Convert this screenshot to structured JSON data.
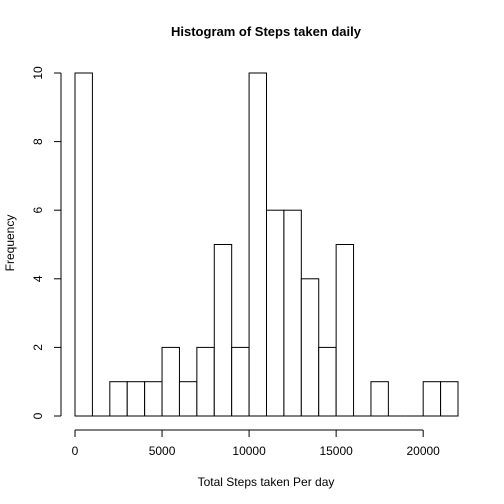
{
  "chart_data": {
    "type": "bar",
    "title": "Histogram of Steps taken daily",
    "xlabel": "Total Steps taken Per day",
    "ylabel": "Frequency",
    "bin_edges": [
      0,
      1000,
      2000,
      3000,
      4000,
      5000,
      6000,
      7000,
      8000,
      9000,
      10000,
      11000,
      12000,
      13000,
      14000,
      15000,
      16000,
      17000,
      18000,
      19000,
      20000,
      21000,
      22000
    ],
    "values": [
      10,
      0,
      1,
      1,
      1,
      2,
      1,
      2,
      5,
      2,
      10,
      6,
      6,
      4,
      2,
      5,
      0,
      1,
      0,
      0,
      1,
      1
    ],
    "xlim": [
      0,
      22000
    ],
    "ylim": [
      0,
      10
    ],
    "x_ticks": [
      "0",
      "5000",
      "10000",
      "15000",
      "20000"
    ],
    "y_ticks": [
      "0",
      "2",
      "4",
      "6",
      "8",
      "10"
    ],
    "grid": false,
    "bar_fill": "#ffffff",
    "bar_stroke": "#000000"
  }
}
